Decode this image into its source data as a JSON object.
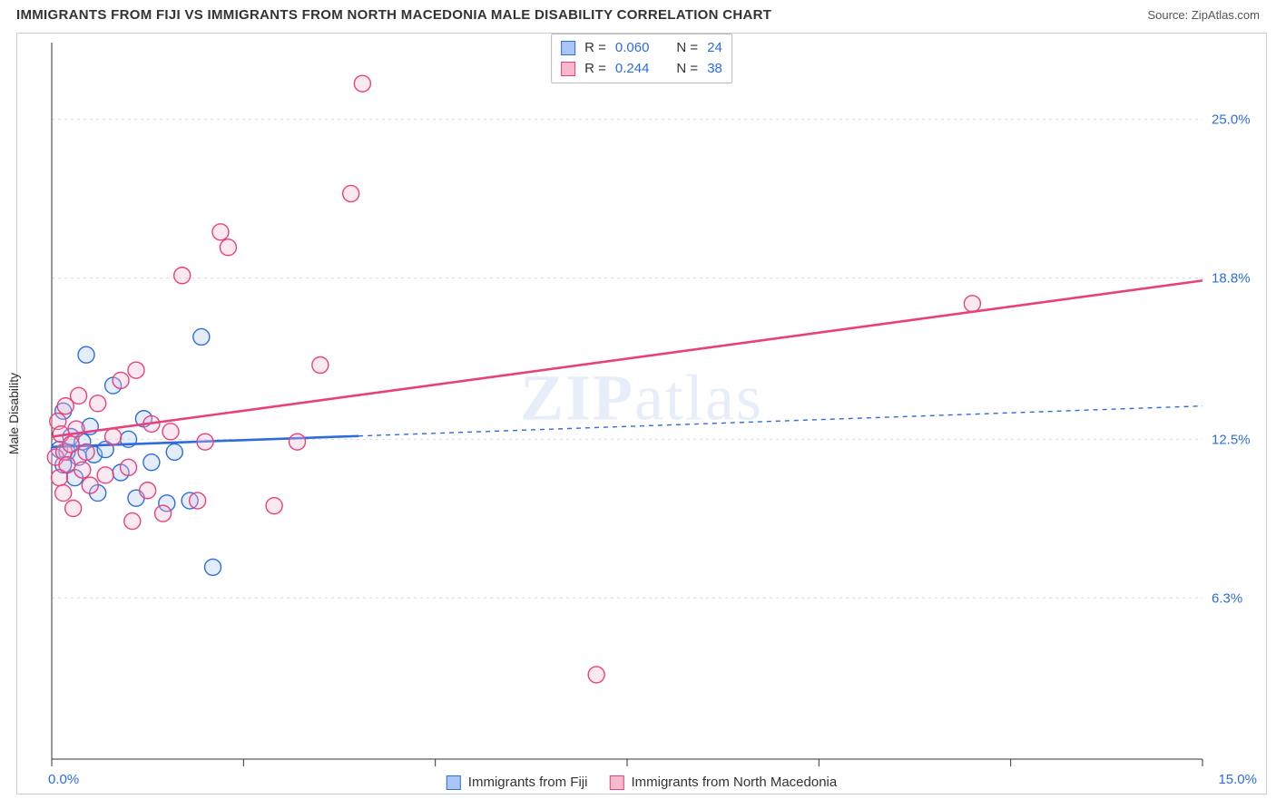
{
  "header": {
    "title": "IMMIGRANTS FROM FIJI VS IMMIGRANTS FROM NORTH MACEDONIA MALE DISABILITY CORRELATION CHART",
    "source_prefix": "Source: ",
    "source_name": "ZipAtlas.com"
  },
  "watermark": {
    "zip": "ZIP",
    "atlas": "atlas"
  },
  "chart": {
    "type": "scatter",
    "ylabel": "Male Disability",
    "background_color": "#ffffff",
    "grid_color": "#d9d9d9",
    "border_color": "#cccccc",
    "tick_color": "#333333",
    "axis_label_color": "#2d6cdf",
    "xlim": [
      0,
      15
    ],
    "ylim": [
      0,
      28
    ],
    "x_axis_labels": {
      "min": "0.0%",
      "max": "15.0%"
    },
    "y_grid": [
      {
        "v": 6.3,
        "label": "6.3%"
      },
      {
        "v": 12.5,
        "label": "12.5%"
      },
      {
        "v": 18.8,
        "label": "18.8%"
      },
      {
        "v": 25.0,
        "label": "25.0%"
      }
    ],
    "x_ticks": [
      0,
      2.5,
      5,
      7.5,
      10,
      12.5,
      15
    ],
    "marker_radius": 9,
    "marker_stroke_width": 1.4,
    "marker_fill_opacity": 0.32,
    "trend_line_width": 2.6,
    "series": [
      {
        "key": "fiji",
        "label": "Immigrants from Fiji",
        "color_stroke": "#2d6cdf",
        "color_fill": "#a9c7f2",
        "stats": {
          "R": "0.060",
          "N": "24"
        },
        "trend": {
          "solid_to_x": 4.0,
          "y_at_0": 12.2,
          "y_at_max": 13.8
        },
        "points": [
          [
            0.1,
            12.1
          ],
          [
            0.15,
            11.5
          ],
          [
            0.15,
            13.6
          ],
          [
            0.2,
            12.0
          ],
          [
            0.25,
            12.6
          ],
          [
            0.3,
            11.0
          ],
          [
            0.35,
            11.8
          ],
          [
            0.4,
            12.4
          ],
          [
            0.45,
            15.8
          ],
          [
            0.5,
            13.0
          ],
          [
            0.55,
            11.9
          ],
          [
            0.6,
            10.4
          ],
          [
            0.7,
            12.1
          ],
          [
            0.8,
            14.6
          ],
          [
            0.9,
            11.2
          ],
          [
            1.0,
            12.5
          ],
          [
            1.1,
            10.2
          ],
          [
            1.2,
            13.3
          ],
          [
            1.3,
            11.6
          ],
          [
            1.5,
            10.0
          ],
          [
            1.6,
            12.0
          ],
          [
            1.8,
            10.1
          ],
          [
            1.95,
            16.5
          ],
          [
            2.1,
            7.5
          ]
        ]
      },
      {
        "key": "nmk",
        "label": "Immigrants from North Macedonia",
        "color_stroke": "#e8417a",
        "color_fill": "#f6b9cf",
        "stats": {
          "R": "0.244",
          "N": "38"
        },
        "trend": {
          "solid_to_x": 15.0,
          "y_at_0": 12.6,
          "y_at_max": 18.7
        },
        "points": [
          [
            0.05,
            11.8
          ],
          [
            0.08,
            13.2
          ],
          [
            0.1,
            11.0
          ],
          [
            0.12,
            12.7
          ],
          [
            0.15,
            10.4
          ],
          [
            0.16,
            12.0
          ],
          [
            0.18,
            13.8
          ],
          [
            0.2,
            11.5
          ],
          [
            0.25,
            12.3
          ],
          [
            0.28,
            9.8
          ],
          [
            0.32,
            12.9
          ],
          [
            0.35,
            14.2
          ],
          [
            0.4,
            11.3
          ],
          [
            0.45,
            12.0
          ],
          [
            0.5,
            10.7
          ],
          [
            0.6,
            13.9
          ],
          [
            0.7,
            11.1
          ],
          [
            0.8,
            12.6
          ],
          [
            0.9,
            14.8
          ],
          [
            1.0,
            11.4
          ],
          [
            1.05,
            9.3
          ],
          [
            1.1,
            15.2
          ],
          [
            1.25,
            10.5
          ],
          [
            1.3,
            13.1
          ],
          [
            1.45,
            9.6
          ],
          [
            1.55,
            12.8
          ],
          [
            1.7,
            18.9
          ],
          [
            1.9,
            10.1
          ],
          [
            2.0,
            12.4
          ],
          [
            2.2,
            20.6
          ],
          [
            2.3,
            20.0
          ],
          [
            2.9,
            9.9
          ],
          [
            3.2,
            12.4
          ],
          [
            3.5,
            15.4
          ],
          [
            3.9,
            22.1
          ],
          [
            4.05,
            26.4
          ],
          [
            7.1,
            3.3
          ],
          [
            12.0,
            17.8
          ]
        ]
      }
    ],
    "stat_legend_labels": {
      "R": "R = ",
      "N": "N = "
    }
  }
}
